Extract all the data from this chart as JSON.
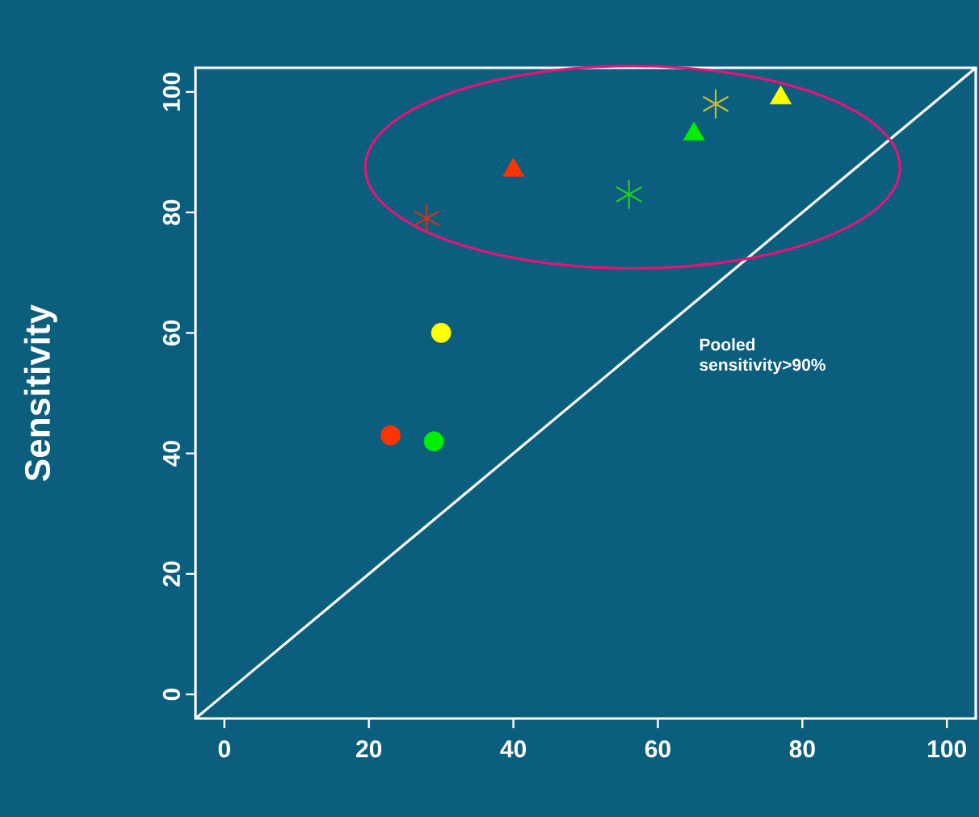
{
  "chart_data": {
    "type": "scatter",
    "ylabel": "Sensitivity",
    "xlim": [
      -4,
      104
    ],
    "ylim": [
      -4,
      104
    ],
    "xticks": [
      0,
      20,
      40,
      60,
      80,
      100
    ],
    "yticks": [
      0,
      20,
      40,
      60,
      80,
      100
    ],
    "grid": false,
    "series": [
      {
        "type": "line",
        "color": "#ffffff",
        "x": [
          -4,
          104
        ],
        "values": [
          -4,
          104
        ],
        "marker": "none",
        "line_style": "solid"
      },
      {
        "marker": "circle",
        "x": [
          23,
          29,
          30
        ],
        "values": [
          43,
          42,
          60
        ],
        "colors": [
          "#ff3300",
          "#00ee00",
          "#ffff00"
        ]
      },
      {
        "marker": "cross",
        "x": [
          28,
          56,
          68
        ],
        "values": [
          79,
          83,
          98
        ],
        "colors": [
          "#cc3322",
          "#22cc22",
          "#ccbb33"
        ]
      },
      {
        "marker": "triangle",
        "x": [
          40,
          65,
          77
        ],
        "values": [
          87,
          93,
          99
        ],
        "colors": [
          "#ff3300",
          "#00ee00",
          "#ffff00"
        ]
      }
    ],
    "annotations": [
      "Pooled sensitivity>90%"
    ]
  }
}
